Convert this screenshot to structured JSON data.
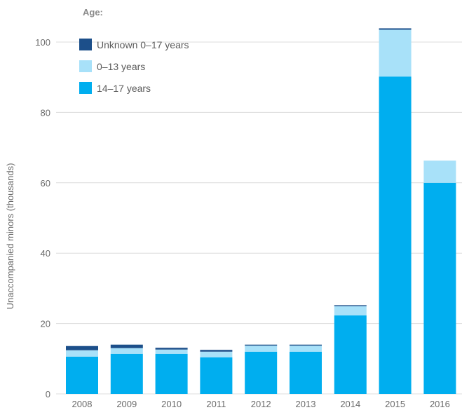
{
  "chart_data": {
    "type": "bar",
    "stacked": true,
    "categories": [
      "2008",
      "2009",
      "2010",
      "2011",
      "2012",
      "2013",
      "2014",
      "2015",
      "2016"
    ],
    "series": [
      {
        "name": "14–17 years",
        "values": [
          10.6,
          11.4,
          11.4,
          10.4,
          12.0,
          12.0,
          22.3,
          90.2,
          60.0
        ],
        "color": "#00aeef"
      },
      {
        "name": "0–13 years",
        "values": [
          1.8,
          1.6,
          1.2,
          1.6,
          1.7,
          1.7,
          2.6,
          13.3,
          6.3
        ],
        "color": "#a8e1f9"
      },
      {
        "name": "Unknown 0–17 years",
        "values": [
          1.2,
          1.0,
          0.5,
          0.5,
          0.3,
          0.3,
          0.3,
          0.4,
          0.0
        ],
        "color": "#1c4f8a"
      }
    ],
    "ylabel": "Unaccompanied minors (thousands)",
    "xlabel": "",
    "ylim": [
      0,
      104
    ],
    "yticks": [
      0,
      20,
      40,
      60,
      80,
      100
    ],
    "grid": true,
    "legend": {
      "title": "Age:",
      "placement": "top-left",
      "order": [
        "Unknown 0–17 years",
        "0–13 years",
        "14–17 years"
      ]
    }
  }
}
